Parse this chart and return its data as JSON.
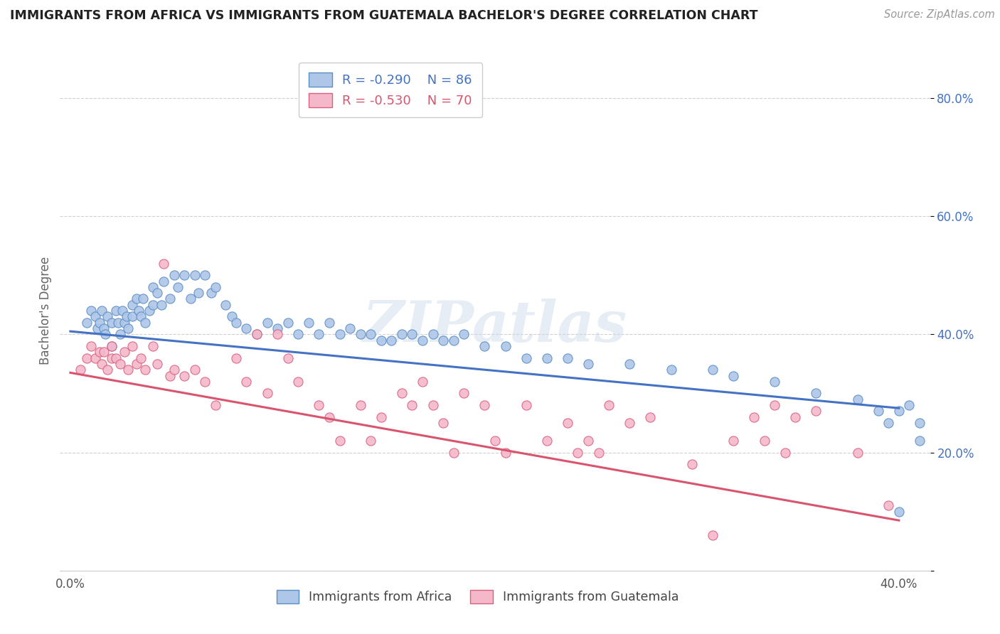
{
  "title": "IMMIGRANTS FROM AFRICA VS IMMIGRANTS FROM GUATEMALA BACHELOR'S DEGREE CORRELATION CHART",
  "source": "Source: ZipAtlas.com",
  "ylabel": "Bachelor's Degree",
  "xlim": [
    -0.005,
    0.415
  ],
  "ylim": [
    0.0,
    0.88
  ],
  "africa_color": "#aec6e8",
  "africa_edge_color": "#5b8ec4",
  "africa_line_color": "#4472c4",
  "guatemala_color": "#f5b8ca",
  "guatemala_edge_color": "#d96080",
  "guatemala_line_color": "#d9546e",
  "africa_R": -0.29,
  "africa_N": 86,
  "guatemala_R": -0.53,
  "guatemala_N": 70,
  "africa_intercept": 0.405,
  "africa_slope": -0.325,
  "guatemala_intercept": 0.335,
  "guatemala_slope": -0.625,
  "africa_x": [
    0.008,
    0.01,
    0.012,
    0.013,
    0.014,
    0.015,
    0.016,
    0.017,
    0.018,
    0.02,
    0.02,
    0.022,
    0.023,
    0.024,
    0.025,
    0.026,
    0.027,
    0.028,
    0.03,
    0.03,
    0.032,
    0.033,
    0.034,
    0.035,
    0.036,
    0.038,
    0.04,
    0.04,
    0.042,
    0.044,
    0.045,
    0.048,
    0.05,
    0.052,
    0.055,
    0.058,
    0.06,
    0.062,
    0.065,
    0.068,
    0.07,
    0.075,
    0.078,
    0.08,
    0.085,
    0.09,
    0.095,
    0.1,
    0.105,
    0.11,
    0.115,
    0.12,
    0.125,
    0.13,
    0.135,
    0.14,
    0.145,
    0.15,
    0.155,
    0.16,
    0.165,
    0.17,
    0.175,
    0.18,
    0.185,
    0.19,
    0.2,
    0.21,
    0.22,
    0.23,
    0.24,
    0.25,
    0.27,
    0.29,
    0.31,
    0.32,
    0.34,
    0.36,
    0.38,
    0.39,
    0.395,
    0.4,
    0.4,
    0.405,
    0.41,
    0.41
  ],
  "africa_y": [
    0.42,
    0.44,
    0.43,
    0.41,
    0.42,
    0.44,
    0.41,
    0.4,
    0.43,
    0.42,
    0.38,
    0.44,
    0.42,
    0.4,
    0.44,
    0.42,
    0.43,
    0.41,
    0.45,
    0.43,
    0.46,
    0.44,
    0.43,
    0.46,
    0.42,
    0.44,
    0.48,
    0.45,
    0.47,
    0.45,
    0.49,
    0.46,
    0.5,
    0.48,
    0.5,
    0.46,
    0.5,
    0.47,
    0.5,
    0.47,
    0.48,
    0.45,
    0.43,
    0.42,
    0.41,
    0.4,
    0.42,
    0.41,
    0.42,
    0.4,
    0.42,
    0.4,
    0.42,
    0.4,
    0.41,
    0.4,
    0.4,
    0.39,
    0.39,
    0.4,
    0.4,
    0.39,
    0.4,
    0.39,
    0.39,
    0.4,
    0.38,
    0.38,
    0.36,
    0.36,
    0.36,
    0.35,
    0.35,
    0.34,
    0.34,
    0.33,
    0.32,
    0.3,
    0.29,
    0.27,
    0.25,
    0.1,
    0.27,
    0.28,
    0.22,
    0.25
  ],
  "guatemala_x": [
    0.005,
    0.008,
    0.01,
    0.012,
    0.014,
    0.015,
    0.016,
    0.018,
    0.02,
    0.02,
    0.022,
    0.024,
    0.026,
    0.028,
    0.03,
    0.032,
    0.034,
    0.036,
    0.04,
    0.042,
    0.045,
    0.048,
    0.05,
    0.055,
    0.06,
    0.065,
    0.07,
    0.08,
    0.085,
    0.09,
    0.095,
    0.1,
    0.105,
    0.11,
    0.12,
    0.125,
    0.13,
    0.14,
    0.145,
    0.15,
    0.16,
    0.165,
    0.17,
    0.175,
    0.18,
    0.185,
    0.19,
    0.2,
    0.205,
    0.21,
    0.22,
    0.23,
    0.24,
    0.245,
    0.25,
    0.255,
    0.26,
    0.27,
    0.28,
    0.3,
    0.31,
    0.32,
    0.33,
    0.335,
    0.34,
    0.345,
    0.35,
    0.36,
    0.38,
    0.395
  ],
  "guatemala_y": [
    0.34,
    0.36,
    0.38,
    0.36,
    0.37,
    0.35,
    0.37,
    0.34,
    0.38,
    0.36,
    0.36,
    0.35,
    0.37,
    0.34,
    0.38,
    0.35,
    0.36,
    0.34,
    0.38,
    0.35,
    0.52,
    0.33,
    0.34,
    0.33,
    0.34,
    0.32,
    0.28,
    0.36,
    0.32,
    0.4,
    0.3,
    0.4,
    0.36,
    0.32,
    0.28,
    0.26,
    0.22,
    0.28,
    0.22,
    0.26,
    0.3,
    0.28,
    0.32,
    0.28,
    0.25,
    0.2,
    0.3,
    0.28,
    0.22,
    0.2,
    0.28,
    0.22,
    0.25,
    0.2,
    0.22,
    0.2,
    0.28,
    0.25,
    0.26,
    0.18,
    0.06,
    0.22,
    0.26,
    0.22,
    0.28,
    0.2,
    0.26,
    0.27,
    0.2,
    0.11
  ],
  "background_color": "#ffffff",
  "grid_color": "#d0d0d0",
  "legend_text_color_africa": "#4472c4",
  "legend_text_color_guatemala": "#d9546e",
  "ytick_color": "#4472c4",
  "watermark": "ZIPatlas"
}
